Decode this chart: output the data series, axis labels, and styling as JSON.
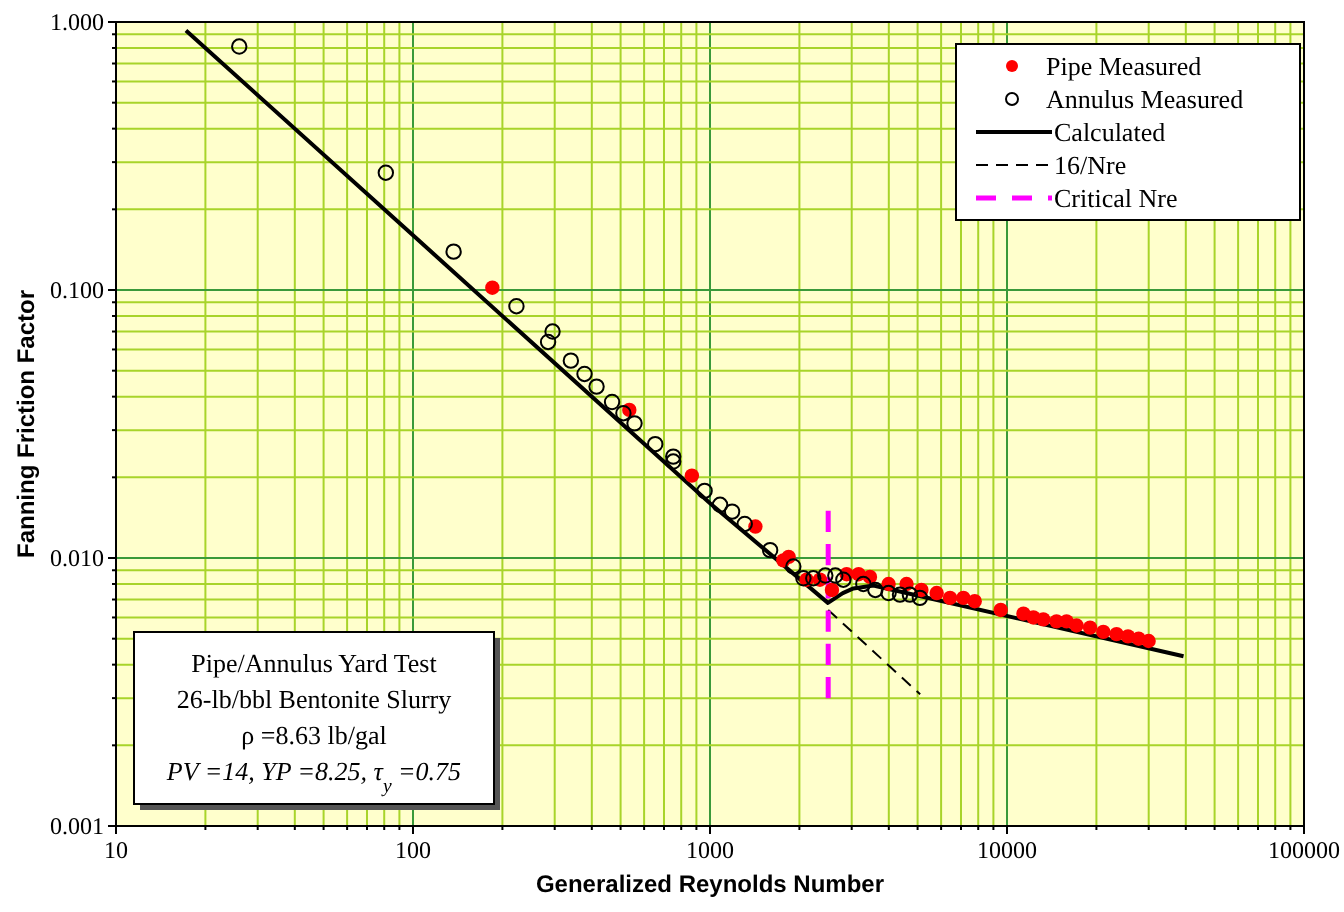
{
  "chart_data": {
    "type": "scatter",
    "xlabel": "Generalized Reynolds Number",
    "ylabel": "Fanning Friction Factor",
    "log": "xy",
    "grid": true,
    "legend": "top right",
    "xlim": [
      10,
      100000
    ],
    "xticks": [
      10,
      {
        "value": 20,
        "label": null
      },
      {
        "value": 30,
        "label": null
      },
      {
        "value": 40,
        "label": null
      },
      {
        "value": 50,
        "label": null
      },
      {
        "value": 60,
        "label": null
      },
      {
        "value": 70,
        "label": null
      },
      {
        "value": 80,
        "label": null
      },
      {
        "value": 90,
        "label": null
      },
      100,
      {
        "value": 200,
        "label": null
      },
      {
        "value": 300,
        "label": null
      },
      {
        "value": 400,
        "label": null
      },
      {
        "value": 500,
        "label": null
      },
      {
        "value": 600,
        "label": null
      },
      {
        "value": 700,
        "label": null
      },
      {
        "value": 800,
        "label": null
      },
      {
        "value": 900,
        "label": null
      },
      1000,
      {
        "value": 2000,
        "label": null
      },
      {
        "value": 3000,
        "label": null
      },
      {
        "value": 4000,
        "label": null
      },
      {
        "value": 5000,
        "label": null
      },
      {
        "value": 6000,
        "label": null
      },
      {
        "value": 7000,
        "label": null
      },
      {
        "value": 8000,
        "label": null
      },
      {
        "value": 9000,
        "label": null
      },
      10000,
      {
        "value": 20000,
        "label": null
      },
      {
        "value": 30000,
        "label": null
      },
      {
        "value": 40000,
        "label": null
      },
      {
        "value": 50000,
        "label": null
      },
      {
        "value": 60000,
        "label": null
      },
      {
        "value": 70000,
        "label": null
      },
      {
        "value": 80000,
        "label": null
      },
      {
        "value": 90000,
        "label": null
      },
      100000
    ],
    "ylim": [
      0.001,
      1
    ],
    "yticks": [
      {
        "value": 0.001,
        "label": "0.001"
      },
      {
        "value": 0.002,
        "label": null
      },
      {
        "value": 0.003,
        "label": null
      },
      {
        "value": 0.004,
        "label": null
      },
      {
        "value": 0.005,
        "label": null
      },
      {
        "value": 0.006,
        "label": null
      },
      {
        "value": 0.007,
        "label": null
      },
      {
        "value": 0.008,
        "label": null
      },
      {
        "value": 0.009,
        "label": null
      },
      {
        "value": 0.01,
        "label": "0.010"
      },
      {
        "value": 0.02,
        "label": null
      },
      {
        "value": 0.03,
        "label": null
      },
      {
        "value": 0.04,
        "label": null
      },
      {
        "value": 0.05,
        "label": null
      },
      {
        "value": 0.06,
        "label": null
      },
      {
        "value": 0.07,
        "label": null
      },
      {
        "value": 0.08,
        "label": null
      },
      {
        "value": 0.09,
        "label": null
      },
      {
        "value": 0.1,
        "label": "0.100"
      },
      {
        "value": 0.2,
        "label": null
      },
      {
        "value": 0.3,
        "label": null
      },
      {
        "value": 0.4,
        "label": null
      },
      {
        "value": 0.5,
        "label": null
      },
      {
        "value": 0.6,
        "label": null
      },
      {
        "value": 0.7,
        "label": null
      },
      {
        "value": 0.8,
        "label": null
      },
      {
        "value": 0.9,
        "label": null
      },
      {
        "value": 1,
        "label": "1.000"
      }
    ],
    "series": [
      {
        "name": "Pipe Measured",
        "marker": "circle",
        "color": "#ff0000",
        "x": [
          185,
          535,
          869,
          1422,
          1766,
          1840,
          2115,
          2345,
          2574,
          2884,
          3165,
          3456,
          3993,
          4590,
          5148,
          5797,
          6430,
          7130,
          7785,
          9525,
          11360,
          12270,
          13250,
          14680,
          15870,
          17150,
          19040,
          21100,
          23380,
          25550,
          27750,
          29980
        ],
        "values": [
          0.102,
          0.0357,
          0.0203,
          0.0131,
          0.0098,
          0.0101,
          0.0083,
          0.0083,
          0.0076,
          0.0087,
          0.0087,
          0.0085,
          0.008,
          0.008,
          0.0076,
          0.0074,
          0.0071,
          0.0071,
          0.0069,
          0.0064,
          0.0062,
          0.006,
          0.0059,
          0.0058,
          0.0058,
          0.0056,
          0.0055,
          0.0053,
          0.0052,
          0.0051,
          0.005,
          0.0049
        ]
      },
      {
        "name": "Annulus Measured",
        "marker": "circle-open",
        "color": "#000000",
        "x": [
          26,
          81,
          137,
          223,
          295,
          285,
          340,
          378,
          415,
          468,
          511,
          557,
          654,
          752,
          752,
          959,
          1081,
          1187,
          1309,
          1594,
          1908,
          2063,
          2227,
          2445,
          2642,
          2812,
          3283,
          3603,
          3993,
          4362,
          4710,
          5090
        ],
        "values": [
          0.81,
          0.274,
          0.139,
          0.087,
          0.07,
          0.064,
          0.0545,
          0.0486,
          0.0436,
          0.0382,
          0.0347,
          0.0318,
          0.0266,
          0.0239,
          0.0229,
          0.0178,
          0.0158,
          0.0149,
          0.0134,
          0.0107,
          0.0093,
          0.0084,
          0.0084,
          0.0086,
          0.0086,
          0.0083,
          0.008,
          0.0076,
          0.0074,
          0.0073,
          0.0073,
          0.0071
        ]
      },
      {
        "name": "Calculated",
        "type": "line",
        "line_style": "solid",
        "color": "#000000",
        "x": [
          17.2,
          100,
          1000,
          2495,
          2800,
          3040,
          3550,
          39300
        ],
        "values": [
          0.93,
          0.16,
          0.016,
          0.0068,
          0.0074,
          0.0077,
          0.0079,
          0.0043
        ]
      },
      {
        "name": "16/Nre",
        "type": "line",
        "line_style": "dashed",
        "color": "#000000",
        "x": [
          2500,
          5100
        ],
        "values": [
          0.0064,
          0.0031
        ]
      },
      {
        "name": "Critical Nre",
        "type": "line",
        "line_style": "dashed",
        "color": "#ff00ff",
        "x": [
          2500,
          2500
        ],
        "values": [
          0.015,
          0.003
        ]
      }
    ],
    "annotations": [
      "Pipe/Annulus Yard Test",
      "26-lb/bbl Bentonite Slurry",
      "ρ =8.63 lb/gal",
      "PV =14, YP =8.25, τ$_{y}$ =0.75"
    ]
  }
}
